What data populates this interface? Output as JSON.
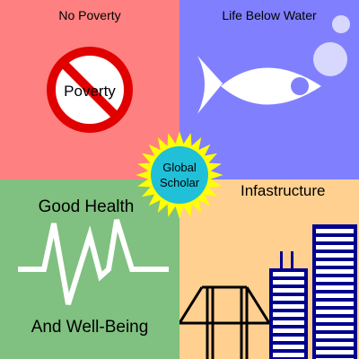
{
  "colors": {
    "no_poverty_bg": "#ff8080",
    "life_below_water_bg": "#8080ff",
    "good_health_bg": "#80c080",
    "infrastructure_bg": "#ffd090",
    "sun_fill": "#ffff00",
    "center_circle": "#20c0d8",
    "building_blue": "#000090"
  },
  "quadrants": {
    "no_poverty": {
      "title": "No Poverty",
      "sign_text": "Poverty",
      "icon": "no-symbol-icon"
    },
    "life_below_water": {
      "title": "Life Below Water",
      "icon": "fish-icon"
    },
    "good_health": {
      "title_top": "Good Health",
      "title_bottom": "And Well-Being",
      "icon": "heartbeat-icon"
    },
    "infrastructure": {
      "title": "Infastructure",
      "icons": [
        "bridge-icon",
        "building-icon"
      ]
    }
  },
  "center": {
    "line1": "Global",
    "line2": "Scholar",
    "icon": "sun-icon"
  }
}
